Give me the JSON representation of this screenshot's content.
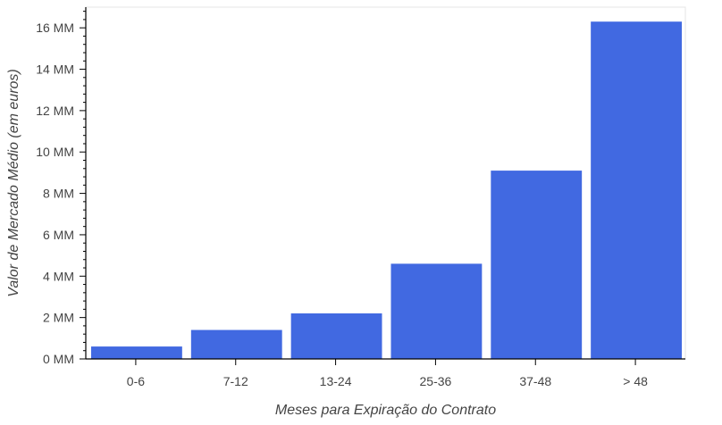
{
  "chart_data": {
    "type": "bar",
    "title": "",
    "xlabel": "Meses para Expiração do Contrato",
    "ylabel": "Valor de Mercado Médio (em euros)",
    "categories": [
      "0-6",
      "7-12",
      "13-24",
      "25-36",
      "37-48",
      "> 48"
    ],
    "values": [
      600000,
      1400000,
      2200000,
      4600000,
      9100000,
      16300000
    ],
    "ylim": [
      0,
      17000000
    ],
    "y_ticks": [
      0,
      2000000,
      4000000,
      6000000,
      8000000,
      10000000,
      12000000,
      14000000,
      16000000
    ],
    "y_tick_labels": [
      "0 MM",
      "2 MM",
      "4 MM",
      "6 MM",
      "8 MM",
      "10 MM",
      "12 MM",
      "14 MM",
      "16 MM"
    ],
    "grid": false,
    "legend": "none",
    "bar_color": "#4169e1",
    "axis_color": "#000000",
    "frame_color": "#e5e5e5"
  }
}
